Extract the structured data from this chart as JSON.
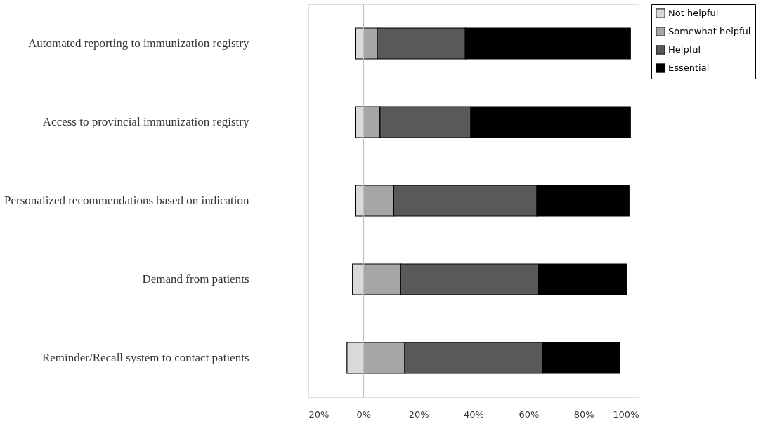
{
  "chart_data": {
    "type": "bar",
    "orientation": "horizontal",
    "stacked": true,
    "categories": [
      "Automated reporting to immunization registry",
      "Access to provincial immunization registry",
      "Personalized recommendations based on indication",
      "Demand from patients",
      "Reminder/Recall system to contact patients"
    ],
    "series": [
      {
        "name": "Not helpful",
        "color": "#d9d9d9",
        "values": [
          -3,
          -3,
          -3,
          -4,
          -6
        ]
      },
      {
        "name": "Somewhat helpful",
        "color": "#a6a6a6",
        "values": [
          5,
          6,
          11,
          13.5,
          15
        ]
      },
      {
        "name": "Helpful",
        "color": "#595959",
        "values": [
          32,
          33,
          52,
          50,
          50
        ]
      },
      {
        "name": "Essential",
        "color": "#000000",
        "values": [
          60,
          58,
          33.5,
          32,
          28
        ]
      }
    ],
    "xlim": [
      -20,
      100
    ],
    "xticks": [
      {
        "value": -20,
        "label": "20%"
      },
      {
        "value": 0,
        "label": "0%"
      },
      {
        "value": 20,
        "label": "20%"
      },
      {
        "value": 40,
        "label": "40%"
      },
      {
        "value": 60,
        "label": "60%"
      },
      {
        "value": 80,
        "label": "80%"
      },
      {
        "value": 100,
        "label": "100%"
      }
    ],
    "ref_lines": [
      {
        "axis": "x",
        "value": 0,
        "color": "#bfbfbf"
      }
    ],
    "grid": false,
    "legend": "right"
  }
}
